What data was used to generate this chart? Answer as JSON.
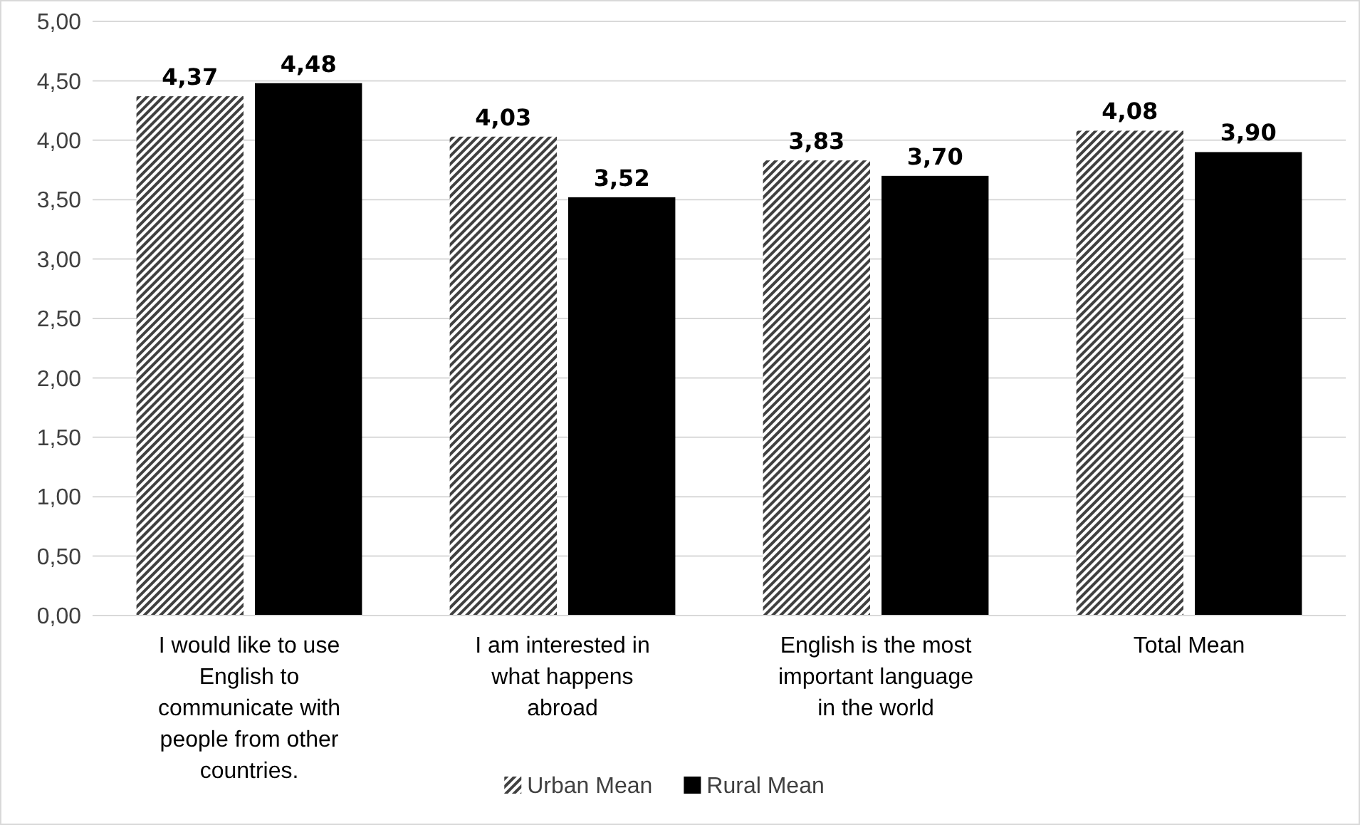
{
  "chart_data": {
    "type": "bar",
    "categories": [
      "I would like to use English to communicate with people from other countries.",
      "I am interested in what happens abroad",
      "English is the most important language in the world",
      "Total Mean"
    ],
    "series": [
      {
        "name": "Urban Mean",
        "color": "#404040",
        "values": [
          4.37,
          4.03,
          3.83,
          4.08
        ],
        "value_labels": [
          "4,37",
          "4,03",
          "3,83",
          "4,08"
        ]
      },
      {
        "name": "Rural Mean",
        "color": "#000000",
        "values": [
          4.48,
          3.52,
          3.7,
          3.9
        ],
        "value_labels": [
          "4,48",
          "3,52",
          "3,70",
          "3,90"
        ]
      }
    ],
    "ylim": [
      0,
      5
    ],
    "yticks": [
      {
        "value": 0,
        "label": "0,00"
      },
      {
        "value": 0.5,
        "label": "0,50"
      },
      {
        "value": 1,
        "label": "1,00"
      },
      {
        "value": 1.5,
        "label": "1,50"
      },
      {
        "value": 2,
        "label": "2,00"
      },
      {
        "value": 2.5,
        "label": "2,50"
      },
      {
        "value": 3,
        "label": "3,00"
      },
      {
        "value": 3.5,
        "label": "3,50"
      },
      {
        "value": 4,
        "label": "4,00"
      },
      {
        "value": 4.5,
        "label": "4,50"
      },
      {
        "value": 5,
        "label": "5,00"
      }
    ],
    "grid": "y",
    "legend": "bottom"
  }
}
